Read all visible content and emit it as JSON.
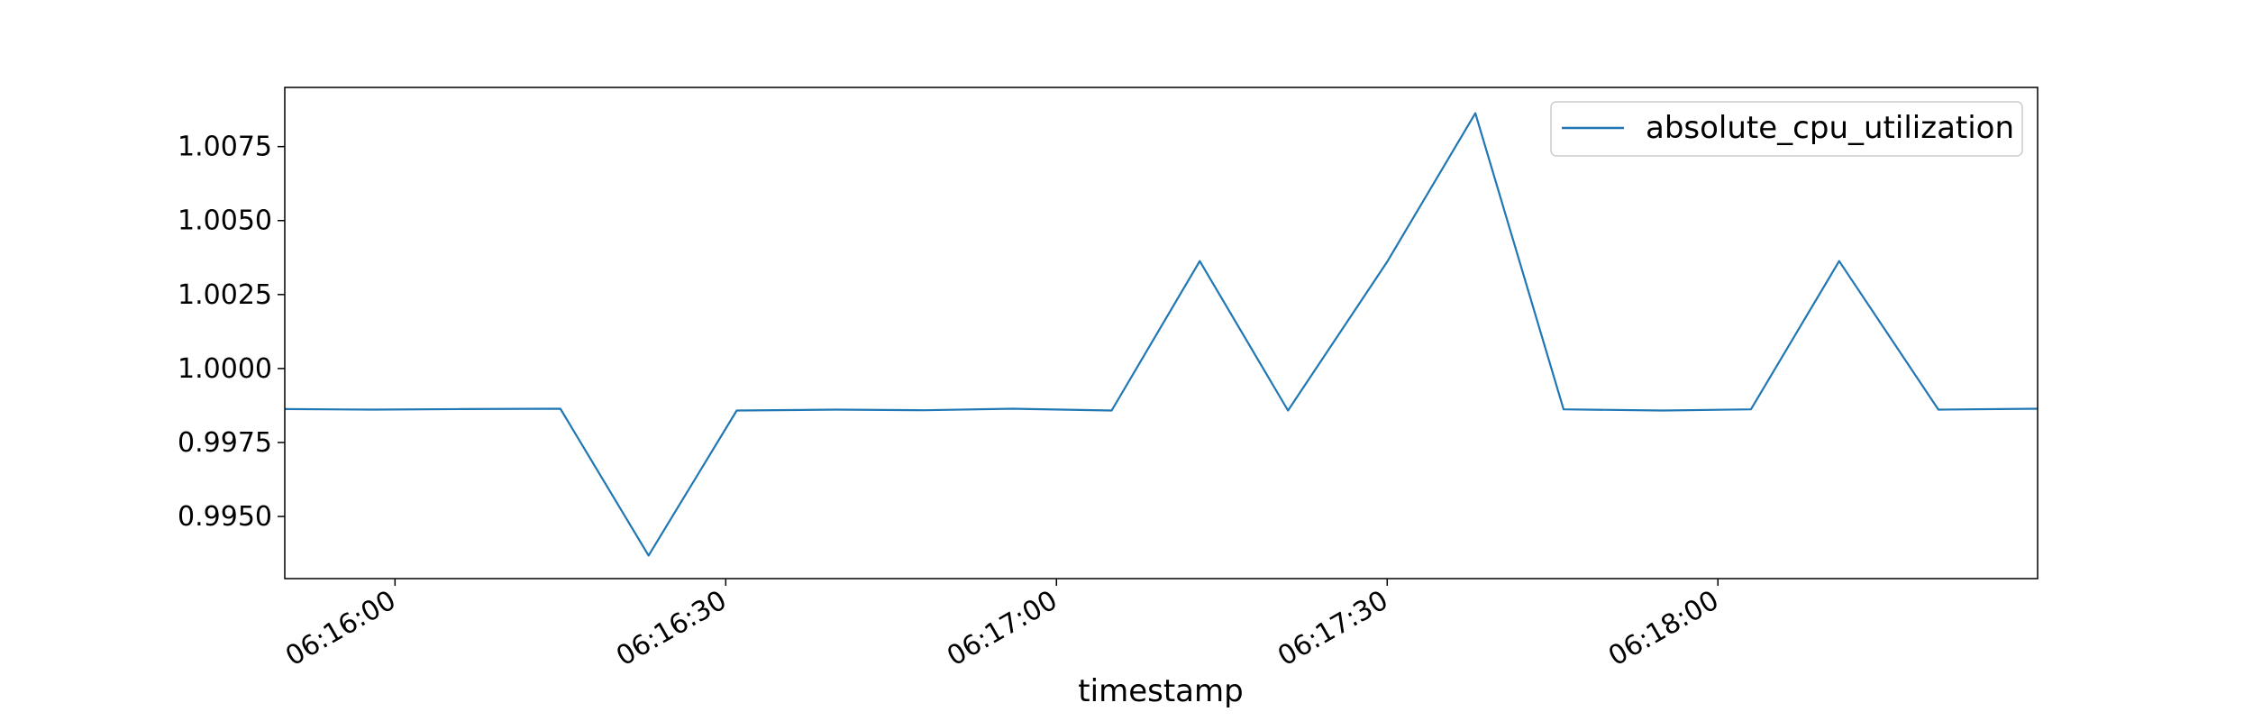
{
  "chart_data": {
    "type": "line",
    "title": "",
    "xlabel": "timestamp",
    "ylabel": "",
    "x_unit": "time",
    "xlim": [
      "06:15:50",
      "06:18:29"
    ],
    "ylim": [
      0.9929,
      1.0095
    ],
    "x_ticks": [
      "06:16:00",
      "06:16:30",
      "06:17:00",
      "06:17:30",
      "06:18:00"
    ],
    "y_ticks": [
      "0.9950",
      "0.9975",
      "1.0000",
      "1.0025",
      "1.0050",
      "1.0075"
    ],
    "grid": false,
    "legend_position": "top-right",
    "series": [
      {
        "name": "absolute_cpu_utilization",
        "color": "#1f77b4",
        "x": [
          "06:15:50",
          "06:15:58",
          "06:16:06",
          "06:16:15",
          "06:16:23",
          "06:16:31",
          "06:16:40",
          "06:16:48",
          "06:16:56",
          "06:17:05",
          "06:17:13",
          "06:17:21",
          "06:17:30",
          "06:17:38",
          "06:17:46",
          "06:17:55",
          "06:18:03",
          "06:18:11",
          "06:18:20",
          "06:18:29"
        ],
        "y": [
          0.99863,
          0.99861,
          0.99863,
          0.99864,
          0.99368,
          0.99858,
          0.99861,
          0.99859,
          0.99864,
          0.99858,
          1.00363,
          0.99858,
          1.00361,
          1.00863,
          0.99862,
          0.99858,
          0.99862,
          1.00363,
          0.99861,
          0.99864
        ]
      }
    ]
  }
}
